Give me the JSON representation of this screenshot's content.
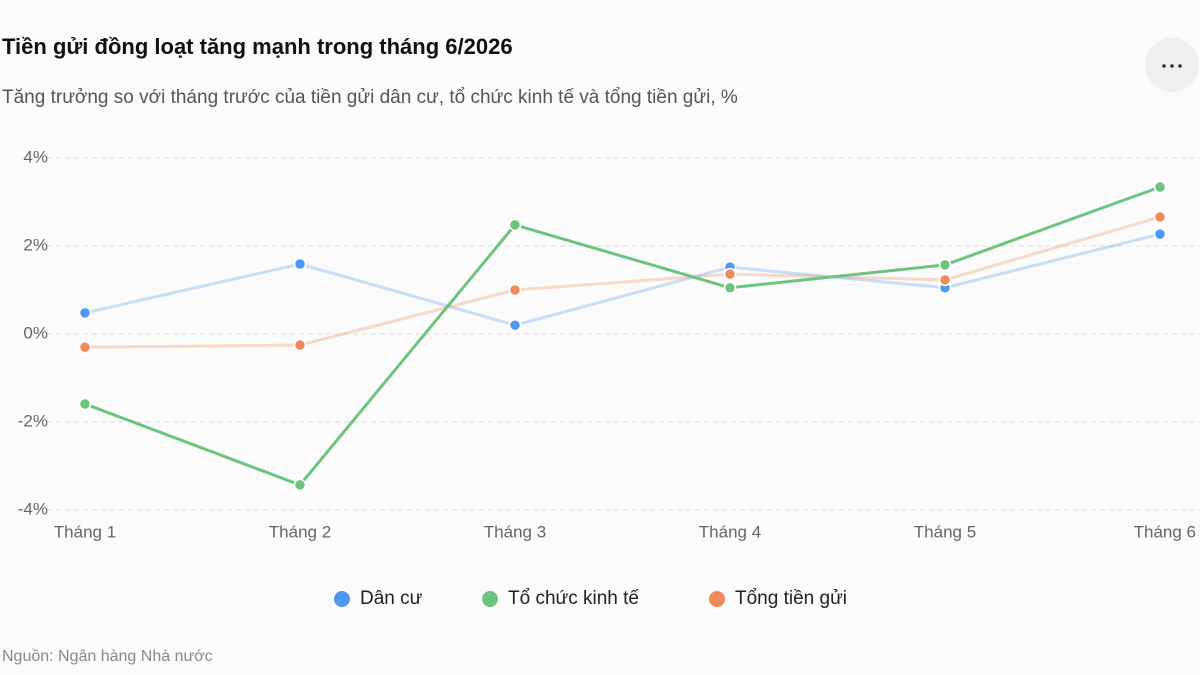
{
  "chart_data": {
    "type": "line",
    "title": "Tiền gửi đồng loạt tăng mạnh trong tháng 6/2026",
    "subtitle": "Tăng trưởng so với tháng trước của tiền gửi dân cư, tổ chức kinh tế và tổng tiền gửi, %",
    "source": "Nguồn: Ngân hàng Nhà nước",
    "categories": [
      "Tháng 1",
      "Tháng 2",
      "Tháng 3",
      "Tháng 4",
      "Tháng 5",
      "Tháng 6"
    ],
    "series": [
      {
        "name": "Dân cư",
        "color": "#4e97f3",
        "highlighted": false,
        "values": [
          0.48,
          1.59,
          0.2,
          1.52,
          1.05,
          2.27
        ]
      },
      {
        "name": "Tổ chức kinh tế",
        "color": "#6cc47e",
        "highlighted": true,
        "values": [
          -1.59,
          -3.43,
          2.48,
          1.05,
          1.57,
          3.34
        ]
      },
      {
        "name": "Tổng tiền gửi",
        "color": "#ec8b57",
        "highlighted": false,
        "values": [
          -0.3,
          -0.25,
          1.0,
          1.36,
          1.23,
          2.66
        ]
      }
    ],
    "ylim": [
      -4,
      4
    ],
    "yticks": [
      {
        "value": -4,
        "label": "-4%"
      },
      {
        "value": -2,
        "label": "-2%"
      },
      {
        "value": 0,
        "label": "0%"
      },
      {
        "value": 2,
        "label": "2%"
      },
      {
        "value": 4,
        "label": "4%"
      }
    ],
    "grid": true,
    "legend": "bottom"
  }
}
